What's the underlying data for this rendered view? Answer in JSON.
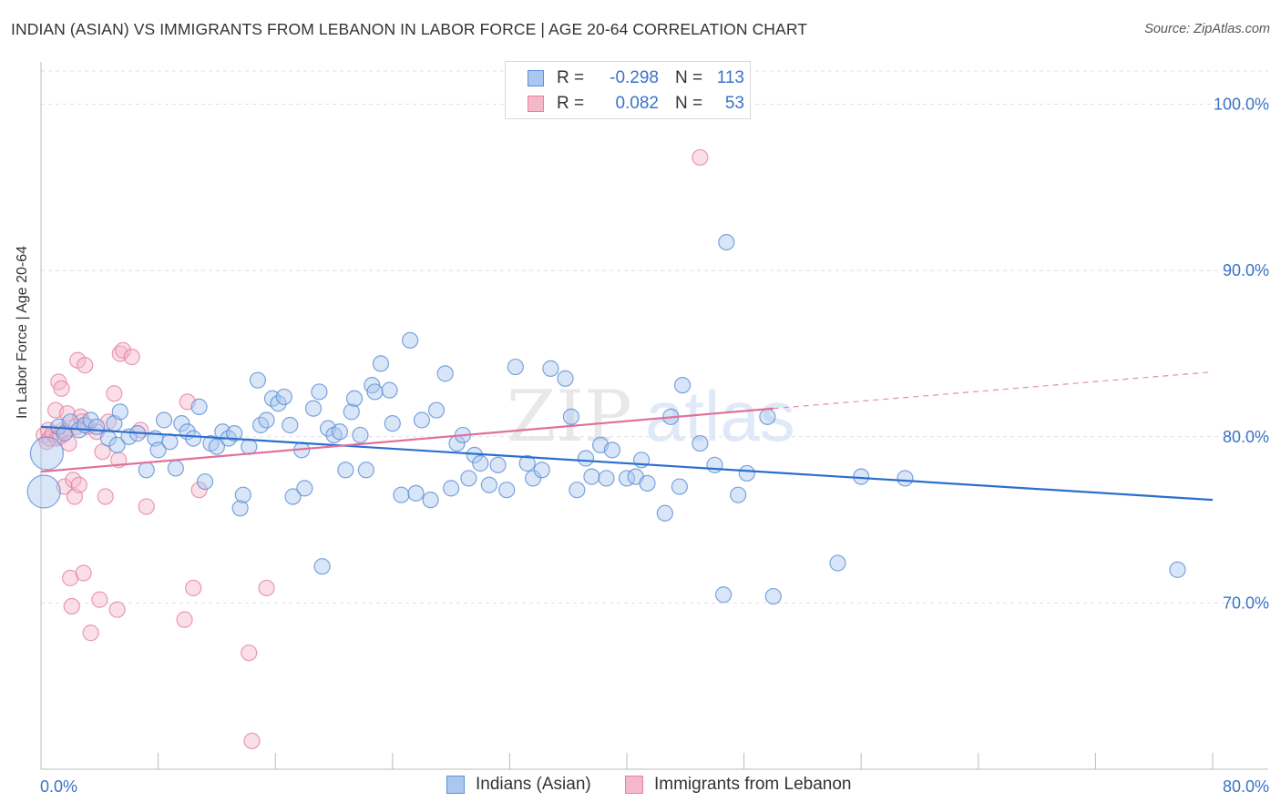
{
  "title": "INDIAN (ASIAN) VS IMMIGRANTS FROM LEBANON IN LABOR FORCE | AGE 20-64 CORRELATION CHART",
  "source": "Source: ZipAtlas.com",
  "legend": {
    "rows": [
      {
        "r_label": "R =",
        "r_value": "-0.298",
        "n_label": "N =",
        "n_value": "113"
      },
      {
        "r_label": "R =",
        "r_value": "0.082",
        "n_label": "N =",
        "n_value": "53"
      }
    ]
  },
  "colors": {
    "blue_fill": "#aac8ef",
    "blue_stroke": "#5b8fd6",
    "blue_line": "#2b6fce",
    "pink_fill": "#f5b8cb",
    "pink_stroke": "#e681a3",
    "pink_line": "#e0709a",
    "tick_label": "#3a73c8",
    "grid": "#e0e0e0"
  },
  "watermark": {
    "zip": "ZIP",
    "atlas": "atlas"
  },
  "chart_data": {
    "type": "scatter",
    "title": "INDIAN (ASIAN) VS IMMIGRANTS FROM LEBANON IN LABOR FORCE | AGE 20-64 CORRELATION CHART",
    "xlabel": "",
    "ylabel": "In Labor Force | Age 20-64",
    "xlim": [
      0,
      80
    ],
    "ylim": [
      60,
      102
    ],
    "x_tick_labels": [
      "0.0%",
      "80.0%"
    ],
    "y_ticks": [
      70,
      80,
      90,
      100
    ],
    "y_tick_labels": [
      "70.0%",
      "80.0%",
      "90.0%",
      "100.0%"
    ],
    "grid": true,
    "legend_position": "top-center",
    "series": [
      {
        "name": "Indians (Asian)",
        "r": -0.298,
        "n": 113,
        "trend": [
          [
            0,
            80.6
          ],
          [
            80,
            76.2
          ]
        ],
        "points": [
          [
            0.2,
            76.7
          ],
          [
            0.4,
            79.0
          ],
          [
            1.2,
            80.6
          ],
          [
            1.6,
            80.2
          ],
          [
            2.0,
            80.9
          ],
          [
            2.6,
            80.4
          ],
          [
            3.0,
            80.7
          ],
          [
            3.4,
            81.0
          ],
          [
            3.8,
            80.6
          ],
          [
            4.6,
            79.9
          ],
          [
            5.0,
            80.8
          ],
          [
            5.2,
            79.5
          ],
          [
            5.4,
            81.5
          ],
          [
            6.0,
            80.0
          ],
          [
            6.6,
            80.2
          ],
          [
            7.2,
            78.0
          ],
          [
            7.8,
            79.9
          ],
          [
            8.0,
            79.2
          ],
          [
            8.4,
            81.0
          ],
          [
            8.8,
            79.7
          ],
          [
            9.2,
            78.1
          ],
          [
            9.6,
            80.8
          ],
          [
            10.0,
            80.3
          ],
          [
            10.4,
            79.9
          ],
          [
            10.8,
            81.8
          ],
          [
            11.2,
            77.3
          ],
          [
            11.6,
            79.6
          ],
          [
            12.0,
            79.4
          ],
          [
            12.4,
            80.3
          ],
          [
            12.8,
            79.9
          ],
          [
            13.2,
            80.2
          ],
          [
            13.6,
            75.7
          ],
          [
            13.8,
            76.5
          ],
          [
            14.2,
            79.4
          ],
          [
            14.8,
            83.4
          ],
          [
            15.0,
            80.7
          ],
          [
            15.4,
            81.0
          ],
          [
            15.8,
            82.3
          ],
          [
            16.2,
            82.0
          ],
          [
            16.6,
            82.4
          ],
          [
            17.0,
            80.7
          ],
          [
            17.2,
            76.4
          ],
          [
            17.8,
            79.2
          ],
          [
            18.0,
            76.9
          ],
          [
            18.6,
            81.7
          ],
          [
            19.0,
            82.7
          ],
          [
            19.2,
            72.2
          ],
          [
            19.6,
            80.5
          ],
          [
            20.0,
            80.1
          ],
          [
            20.4,
            80.3
          ],
          [
            20.8,
            78.0
          ],
          [
            21.2,
            81.5
          ],
          [
            21.4,
            82.3
          ],
          [
            21.8,
            80.1
          ],
          [
            22.2,
            78.0
          ],
          [
            22.6,
            83.1
          ],
          [
            22.8,
            82.7
          ],
          [
            23.2,
            84.4
          ],
          [
            23.8,
            82.8
          ],
          [
            24.0,
            80.8
          ],
          [
            24.6,
            76.5
          ],
          [
            25.2,
            85.8
          ],
          [
            25.6,
            76.6
          ],
          [
            26.0,
            81.0
          ],
          [
            26.6,
            76.2
          ],
          [
            27.0,
            81.6
          ],
          [
            27.6,
            83.8
          ],
          [
            28.0,
            76.9
          ],
          [
            28.4,
            79.6
          ],
          [
            28.8,
            80.1
          ],
          [
            29.2,
            77.5
          ],
          [
            29.6,
            78.9
          ],
          [
            30.0,
            78.4
          ],
          [
            30.6,
            77.1
          ],
          [
            31.2,
            78.3
          ],
          [
            31.8,
            76.8
          ],
          [
            32.4,
            84.2
          ],
          [
            33.2,
            78.4
          ],
          [
            33.6,
            77.5
          ],
          [
            34.2,
            78.0
          ],
          [
            34.8,
            84.1
          ],
          [
            35.8,
            83.5
          ],
          [
            36.2,
            81.2
          ],
          [
            36.6,
            76.8
          ],
          [
            37.2,
            78.7
          ],
          [
            37.6,
            77.6
          ],
          [
            38.2,
            79.5
          ],
          [
            38.6,
            77.5
          ],
          [
            39.0,
            79.2
          ],
          [
            40.0,
            77.5
          ],
          [
            40.6,
            77.6
          ],
          [
            41.0,
            78.6
          ],
          [
            41.4,
            77.2
          ],
          [
            42.6,
            75.4
          ],
          [
            43.0,
            81.2
          ],
          [
            43.6,
            77.0
          ],
          [
            43.8,
            83.1
          ],
          [
            45.0,
            79.6
          ],
          [
            46.0,
            78.3
          ],
          [
            46.6,
            70.5
          ],
          [
            46.8,
            91.7
          ],
          [
            47.6,
            76.5
          ],
          [
            48.2,
            77.8
          ],
          [
            49.6,
            81.2
          ],
          [
            50.0,
            70.4
          ],
          [
            54.4,
            72.4
          ],
          [
            56.0,
            77.6
          ],
          [
            59.0,
            77.5
          ],
          [
            77.6,
            72.0
          ]
        ]
      },
      {
        "name": "Immigrants from Lebanon",
        "r": 0.082,
        "n": 53,
        "trend": [
          [
            0,
            77.9
          ],
          [
            50,
            81.7
          ]
        ],
        "trend_extension": [
          [
            50,
            81.7
          ],
          [
            80,
            83.9
          ]
        ],
        "points": [
          [
            0.2,
            80.1
          ],
          [
            0.4,
            79.7
          ],
          [
            0.5,
            80.4
          ],
          [
            0.6,
            79.9
          ],
          [
            0.8,
            80.2
          ],
          [
            1.0,
            81.6
          ],
          [
            1.1,
            79.9
          ],
          [
            1.2,
            83.3
          ],
          [
            1.3,
            80.0
          ],
          [
            1.4,
            82.9
          ],
          [
            1.5,
            80.4
          ],
          [
            1.6,
            77.0
          ],
          [
            1.7,
            80.3
          ],
          [
            1.8,
            81.4
          ],
          [
            1.9,
            79.6
          ],
          [
            2.0,
            71.5
          ],
          [
            2.1,
            69.8
          ],
          [
            2.2,
            77.4
          ],
          [
            2.3,
            76.4
          ],
          [
            2.4,
            80.6
          ],
          [
            2.5,
            84.6
          ],
          [
            2.6,
            77.1
          ],
          [
            2.7,
            81.2
          ],
          [
            2.8,
            80.9
          ],
          [
            2.9,
            71.8
          ],
          [
            3.0,
            84.3
          ],
          [
            3.2,
            80.6
          ],
          [
            3.4,
            68.2
          ],
          [
            3.8,
            80.3
          ],
          [
            4.0,
            70.2
          ],
          [
            4.2,
            79.1
          ],
          [
            4.4,
            76.4
          ],
          [
            4.6,
            80.9
          ],
          [
            5.0,
            82.6
          ],
          [
            5.2,
            69.6
          ],
          [
            5.3,
            78.6
          ],
          [
            5.4,
            85.0
          ],
          [
            5.6,
            85.2
          ],
          [
            6.2,
            84.8
          ],
          [
            6.8,
            80.4
          ],
          [
            7.2,
            75.8
          ],
          [
            9.8,
            69.0
          ],
          [
            10.0,
            82.1
          ],
          [
            10.4,
            70.9
          ],
          [
            10.8,
            76.8
          ],
          [
            14.2,
            67.0
          ],
          [
            14.4,
            61.7
          ],
          [
            15.4,
            70.9
          ],
          [
            45.0,
            96.8
          ]
        ]
      }
    ]
  },
  "bottom_legend": [
    {
      "label": "Indians (Asian)"
    },
    {
      "label": "Immigrants from Lebanon"
    }
  ]
}
